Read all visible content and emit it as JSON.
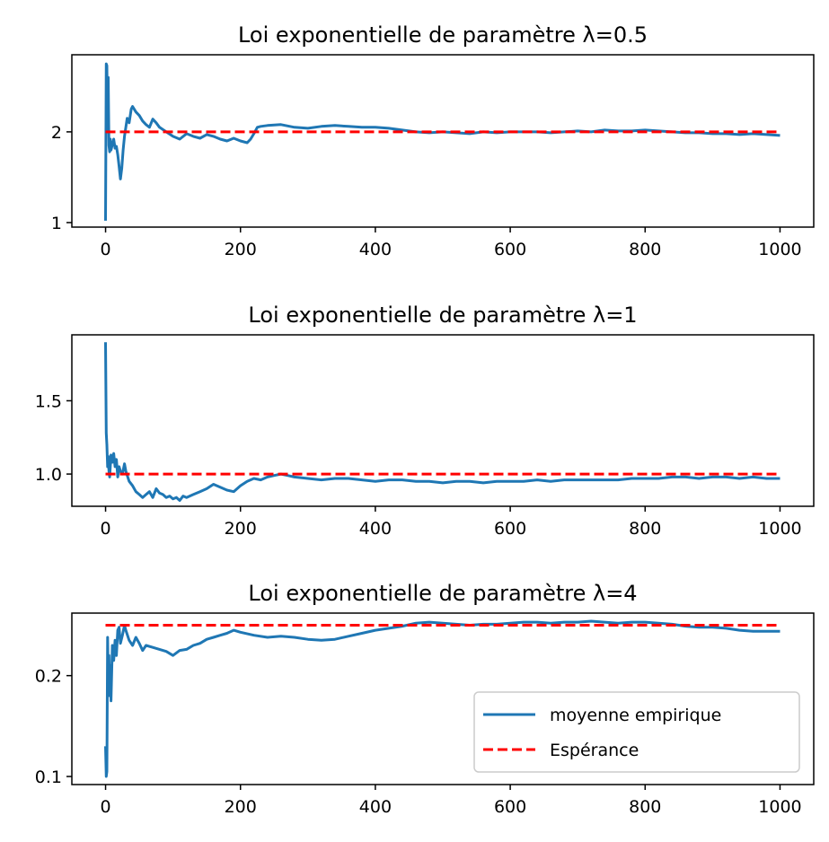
{
  "colors": {
    "series": "#1f77b4",
    "expectation": "#ff0000"
  },
  "legend": {
    "placement": "lower-right",
    "entries": [
      "moyenne empirique",
      "Espérance"
    ]
  },
  "chart_data": [
    {
      "type": "line",
      "title": "Loi exponentielle de paramètre λ=0.5",
      "xlim": [
        -50,
        1050
      ],
      "ylim": [
        0.95,
        2.85
      ],
      "xticks": [
        0,
        200,
        400,
        600,
        800,
        1000
      ],
      "yticks": [
        1,
        2
      ],
      "ytick_labels": [
        "1",
        "2"
      ],
      "series": [
        {
          "name": "moyenne empirique",
          "style": "solid",
          "x": [
            0,
            1,
            2,
            3,
            4,
            5,
            6,
            7,
            8,
            10,
            12,
            14,
            16,
            18,
            20,
            22,
            24,
            26,
            28,
            30,
            32,
            35,
            38,
            40,
            45,
            50,
            55,
            60,
            65,
            70,
            75,
            80,
            90,
            100,
            110,
            120,
            130,
            140,
            150,
            160,
            170,
            180,
            190,
            200,
            210,
            215,
            220,
            225,
            230,
            240,
            260,
            280,
            300,
            320,
            340,
            360,
            380,
            400,
            420,
            440,
            460,
            480,
            500,
            520,
            540,
            560,
            580,
            600,
            620,
            640,
            660,
            680,
            700,
            720,
            740,
            760,
            780,
            800,
            820,
            840,
            860,
            880,
            900,
            920,
            940,
            960,
            980,
            1000
          ],
          "y": [
            1.02,
            2.75,
            2.73,
            2.0,
            2.6,
            1.85,
            1.78,
            1.92,
            1.8,
            1.86,
            1.92,
            1.82,
            1.84,
            1.75,
            1.62,
            1.48,
            1.6,
            1.8,
            1.95,
            2.05,
            2.15,
            2.1,
            2.25,
            2.28,
            2.22,
            2.18,
            2.12,
            2.08,
            2.05,
            2.14,
            2.1,
            2.05,
            2.0,
            1.95,
            1.92,
            1.98,
            1.95,
            1.93,
            1.97,
            1.95,
            1.92,
            1.9,
            1.93,
            1.9,
            1.88,
            1.92,
            1.98,
            2.05,
            2.06,
            2.07,
            2.08,
            2.05,
            2.04,
            2.06,
            2.07,
            2.06,
            2.05,
            2.05,
            2.04,
            2.02,
            2.0,
            1.99,
            2.0,
            1.99,
            1.98,
            2.0,
            1.99,
            2.0,
            2.0,
            2.0,
            1.99,
            2.0,
            2.01,
            2.0,
            2.02,
            2.01,
            2.01,
            2.02,
            2.01,
            2.0,
            1.99,
            1.99,
            1.98,
            1.98,
            1.97,
            1.98,
            1.97,
            1.96
          ]
        },
        {
          "name": "Espérance",
          "style": "dashed",
          "x": [
            0,
            1000
          ],
          "y": [
            2.0,
            2.0
          ]
        }
      ]
    },
    {
      "type": "line",
      "title": "Loi exponentielle de paramètre λ=1",
      "xlim": [
        -50,
        1050
      ],
      "ylim": [
        0.78,
        1.95
      ],
      "xticks": [
        0,
        200,
        400,
        600,
        800,
        1000
      ],
      "yticks": [
        1.0,
        1.5
      ],
      "ytick_labels": [
        "1.0",
        "1.5"
      ],
      "series": [
        {
          "name": "moyenne empirique",
          "style": "solid",
          "x": [
            0,
            1,
            2,
            3,
            4,
            5,
            6,
            8,
            10,
            12,
            14,
            16,
            18,
            20,
            22,
            25,
            28,
            30,
            35,
            40,
            45,
            50,
            55,
            60,
            65,
            70,
            75,
            80,
            85,
            90,
            95,
            100,
            105,
            110,
            115,
            120,
            130,
            140,
            150,
            160,
            170,
            180,
            190,
            200,
            210,
            220,
            230,
            240,
            250,
            260,
            270,
            280,
            300,
            320,
            340,
            360,
            380,
            400,
            420,
            440,
            460,
            480,
            500,
            520,
            540,
            560,
            580,
            600,
            620,
            640,
            660,
            680,
            700,
            720,
            740,
            760,
            780,
            800,
            820,
            840,
            860,
            880,
            900,
            920,
            940,
            960,
            980,
            1000
          ],
          "y": [
            1.9,
            1.28,
            1.2,
            1.05,
            1.12,
            1.02,
            0.98,
            1.13,
            1.08,
            1.14,
            1.05,
            1.1,
            0.98,
            1.05,
            1.02,
            1.0,
            1.07,
            1.02,
            0.95,
            0.92,
            0.88,
            0.86,
            0.84,
            0.86,
            0.88,
            0.84,
            0.9,
            0.87,
            0.86,
            0.84,
            0.85,
            0.83,
            0.84,
            0.82,
            0.85,
            0.84,
            0.86,
            0.88,
            0.9,
            0.93,
            0.91,
            0.89,
            0.88,
            0.92,
            0.95,
            0.97,
            0.96,
            0.98,
            0.99,
            1.0,
            0.99,
            0.98,
            0.97,
            0.96,
            0.97,
            0.97,
            0.96,
            0.95,
            0.96,
            0.96,
            0.95,
            0.95,
            0.94,
            0.95,
            0.95,
            0.94,
            0.95,
            0.95,
            0.95,
            0.96,
            0.95,
            0.96,
            0.96,
            0.96,
            0.96,
            0.96,
            0.97,
            0.97,
            0.97,
            0.98,
            0.98,
            0.97,
            0.98,
            0.98,
            0.97,
            0.98,
            0.97,
            0.97
          ]
        },
        {
          "name": "Espérance",
          "style": "dashed",
          "x": [
            0,
            1000
          ],
          "y": [
            1.0,
            1.0
          ]
        }
      ]
    },
    {
      "type": "line",
      "title": "Loi exponentielle de paramètre λ=4",
      "xlim": [
        -50,
        1050
      ],
      "ylim": [
        0.092,
        0.262
      ],
      "xticks": [
        0,
        200,
        400,
        600,
        800,
        1000
      ],
      "yticks": [
        0.1,
        0.2
      ],
      "ytick_labels": [
        "0.1",
        "0.2"
      ],
      "series": [
        {
          "name": "moyenne empirique",
          "style": "solid",
          "x": [
            0,
            1,
            2,
            3,
            4,
            5,
            6,
            7,
            8,
            10,
            12,
            14,
            16,
            18,
            20,
            22,
            25,
            28,
            30,
            35,
            40,
            45,
            50,
            55,
            60,
            70,
            80,
            90,
            100,
            110,
            120,
            130,
            140,
            150,
            160,
            170,
            180,
            190,
            200,
            220,
            240,
            260,
            280,
            300,
            320,
            340,
            360,
            380,
            400,
            420,
            440,
            460,
            480,
            500,
            520,
            540,
            560,
            580,
            600,
            620,
            640,
            660,
            680,
            700,
            720,
            740,
            760,
            780,
            800,
            820,
            840,
            860,
            880,
            900,
            920,
            940,
            960,
            980,
            1000
          ],
          "y": [
            0.13,
            0.1,
            0.105,
            0.238,
            0.2,
            0.22,
            0.18,
            0.21,
            0.175,
            0.23,
            0.215,
            0.235,
            0.22,
            0.245,
            0.248,
            0.232,
            0.24,
            0.25,
            0.245,
            0.235,
            0.23,
            0.238,
            0.232,
            0.225,
            0.23,
            0.228,
            0.226,
            0.224,
            0.22,
            0.225,
            0.226,
            0.23,
            0.232,
            0.236,
            0.238,
            0.24,
            0.242,
            0.245,
            0.243,
            0.24,
            0.238,
            0.239,
            0.238,
            0.236,
            0.235,
            0.236,
            0.239,
            0.242,
            0.245,
            0.247,
            0.249,
            0.252,
            0.253,
            0.252,
            0.251,
            0.25,
            0.251,
            0.251,
            0.252,
            0.253,
            0.253,
            0.252,
            0.253,
            0.253,
            0.254,
            0.253,
            0.252,
            0.253,
            0.253,
            0.252,
            0.251,
            0.249,
            0.248,
            0.248,
            0.247,
            0.245,
            0.244,
            0.244,
            0.244
          ]
        },
        {
          "name": "Espérance",
          "style": "dashed",
          "x": [
            0,
            1000
          ],
          "y": [
            0.25,
            0.25
          ]
        }
      ]
    }
  ]
}
